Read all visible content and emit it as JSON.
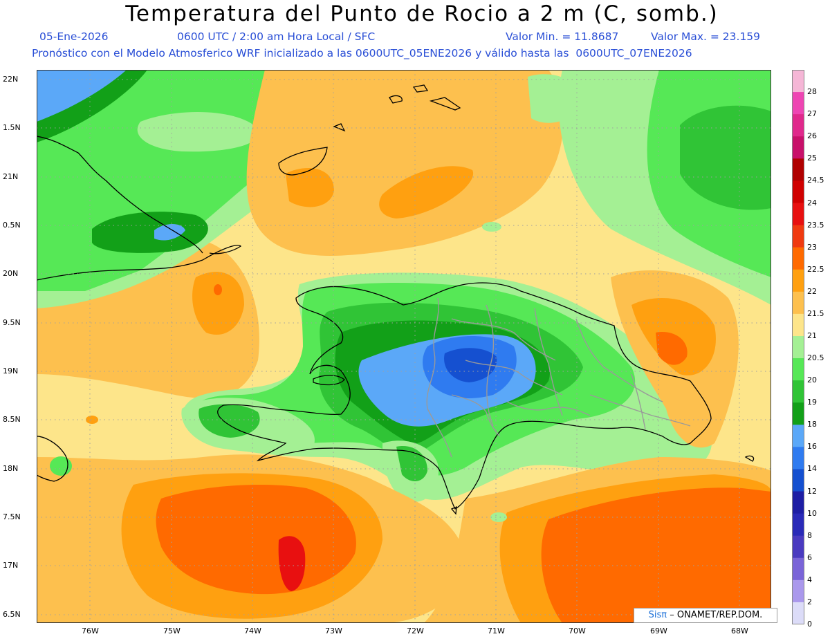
{
  "header": {
    "title": "Temperatura del Punto de Rocio a 2 m (C, somb.)",
    "date": "05-Ene-2026",
    "time_info": "0600 UTC / 2:00 am Hora Local / SFC",
    "min_value": "Valor Min. = 11.8687",
    "max_value": "Valor Max. = 23.159",
    "model_info": "Pronóstico con el Modelo Atmosferico WRF inicializado a las 0600UTC_05ENE2026 y válido hasta las  0600UTC_07ENE2026"
  },
  "axes": {
    "lat_labels": [
      "22N",
      "1.5N",
      "21N",
      "0.5N",
      "20N",
      "9.5N",
      "19N",
      "8.5N",
      "18N",
      "7.5N",
      "17N",
      "6.5N"
    ],
    "lon_labels": [
      "76W",
      "75W",
      "74W",
      "73W",
      "72W",
      "71W",
      "70W",
      "69W",
      "68W"
    ]
  },
  "colorbar": {
    "labels": [
      "28",
      "27",
      "26",
      "25",
      "24.5",
      "24",
      "23.5",
      "23",
      "22.5",
      "22",
      "21.5",
      "21",
      "20.5",
      "20",
      "19",
      "18",
      "16",
      "14",
      "12",
      "10",
      "8",
      "6",
      "4",
      "2",
      "0"
    ],
    "colors": [
      "#f5b6d6",
      "#ee45b3",
      "#e0288c",
      "#c8106a",
      "#b00000",
      "#d00000",
      "#e81010",
      "#f03a10",
      "#ff6a00",
      "#ffa010",
      "#fdc04e",
      "#fde58a",
      "#a4f094",
      "#56e856",
      "#30c436",
      "#12a018",
      "#5ba8f8",
      "#2f7bf0",
      "#1550d0",
      "#1e1ea4",
      "#2a2ab8",
      "#4a3ac0",
      "#7a64d8",
      "#aa98ec",
      "#dcdcf8"
    ]
  },
  "credit": {
    "logo": "Sisπ",
    "text": "– ONAMET/REP.DOM."
  }
}
